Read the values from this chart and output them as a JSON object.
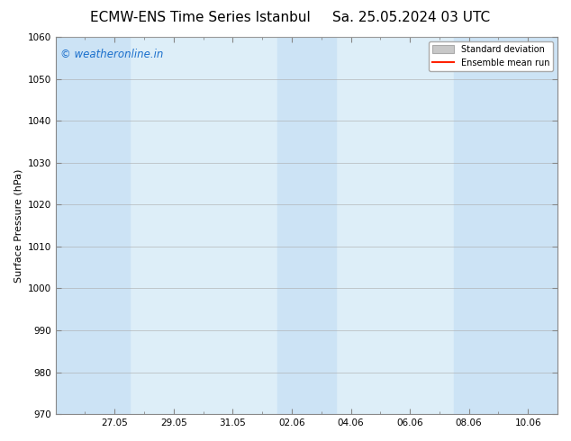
{
  "title_left": "ECMW-ENS Time Series Istanbul",
  "title_right": "Sa. 25.05.2024 03 UTC",
  "ylabel": "Surface Pressure (hPa)",
  "ylim": [
    970,
    1060
  ],
  "yticks": [
    970,
    980,
    990,
    1000,
    1010,
    1020,
    1030,
    1040,
    1050,
    1060
  ],
  "xtick_labels": [
    "27.05",
    "29.05",
    "31.05",
    "02.06",
    "04.06",
    "06.06",
    "08.06",
    "10.06"
  ],
  "xtick_positions": [
    2,
    4,
    6,
    8,
    10,
    12,
    14,
    16
  ],
  "xlim": [
    0,
    17
  ],
  "shaded_bands": [
    {
      "x_start": 0,
      "x_end": 2.5
    },
    {
      "x_start": 7.5,
      "x_end": 9.5
    },
    {
      "x_start": 13.5,
      "x_end": 17
    }
  ],
  "plot_bg_color": "#ddeef8",
  "shade_color": "#cce3f5",
  "watermark_text": "© weatheronline.in",
  "watermark_color": "#1a6fcc",
  "watermark_fontsize": 8.5,
  "legend_std_label": "Standard deviation",
  "legend_mean_label": "Ensemble mean run",
  "legend_std_color": "#c8c8c8",
  "legend_mean_color": "#ff2200",
  "title_fontsize": 11,
  "ylabel_fontsize": 8,
  "tick_fontsize": 7.5,
  "bg_color": "#ffffff",
  "spine_color": "#888888"
}
